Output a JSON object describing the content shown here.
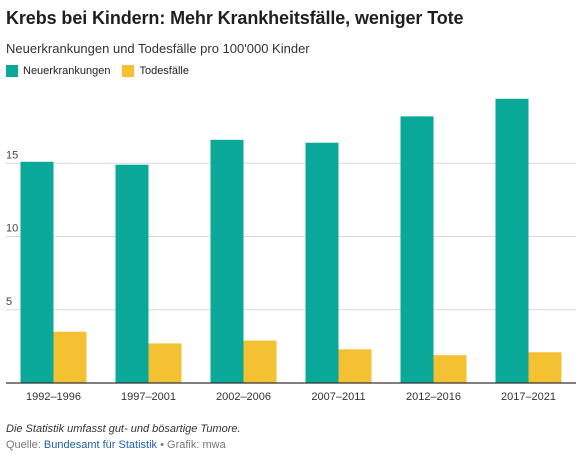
{
  "header": {
    "title": "Krebs bei Kindern: Mehr Krankheitsfälle, weniger Tote",
    "subtitle": "Neuerkrankungen und Todesfälle pro 100'000 Kinder"
  },
  "footer": {
    "note": "Die Statistik umfasst gut- und bösartige Tumore.",
    "source_prefix": "Quelle:",
    "source_link": "Bundesamt für Statistik",
    "separator": "•",
    "credit": "Grafik: mwa"
  },
  "chart_data": {
    "type": "bar",
    "categories": [
      "1992–1996",
      "1997–2001",
      "2002–2006",
      "2007–2011",
      "2012–2016",
      "2017–2021"
    ],
    "series": [
      {
        "name": "Neuerkrankungen",
        "color": "#0aa898",
        "values": [
          15.1,
          14.9,
          16.6,
          16.4,
          18.2,
          19.4
        ]
      },
      {
        "name": "Todesfälle",
        "color": "#f4c132",
        "values": [
          3.5,
          2.7,
          2.9,
          2.3,
          1.9,
          2.1
        ]
      }
    ],
    "y_ticks": [
      5,
      10,
      15
    ],
    "ylim": [
      0,
      20
    ],
    "grid": true,
    "legend_position": "top-left"
  }
}
